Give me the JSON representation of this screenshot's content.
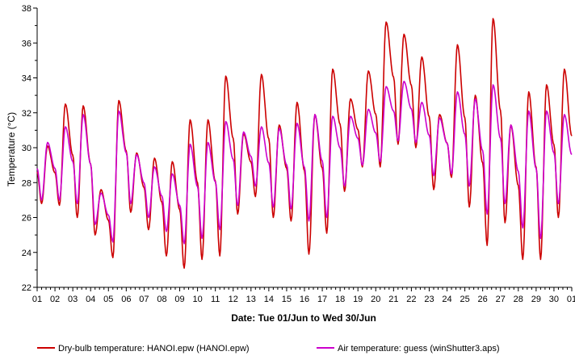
{
  "colors": {
    "drybulb": "#cc0000",
    "air": "#cc00cc"
  },
  "chart_data": {
    "type": "line",
    "title": "",
    "ylabel": "Temperature (°C)",
    "xlabel": "Date: Tue 01/Jun to Wed 30/Jun",
    "ylim": [
      22,
      38
    ],
    "yticks": [
      22,
      24,
      26,
      28,
      30,
      32,
      34,
      36,
      38
    ],
    "xlim": [
      0,
      30
    ],
    "xtick_labels": [
      "01",
      "02",
      "03",
      "04",
      "05",
      "06",
      "07",
      "08",
      "09",
      "10",
      "11",
      "12",
      "13",
      "14",
      "15",
      "16",
      "17",
      "18",
      "19",
      "20",
      "21",
      "22",
      "23",
      "24",
      "25",
      "26",
      "27",
      "28",
      "29",
      "30",
      "01"
    ],
    "grid": false,
    "legend_position": "bottom",
    "series": [
      {
        "name": "Dry-bulb temperature: HANOI.epw (HANOI.epw)",
        "color": "#cc0000",
        "mins": [
          26.8,
          26.7,
          26.0,
          25.0,
          23.7,
          26.3,
          25.3,
          23.8,
          23.1,
          23.6,
          23.8,
          26.2,
          27.2,
          26.0,
          25.8,
          23.9,
          25.1,
          27.5,
          28.9,
          28.9,
          30.2,
          30.0,
          27.6,
          28.3,
          26.6,
          24.4,
          25.7,
          23.6,
          23.6,
          26.0
        ],
        "maxs": [
          30.1,
          32.5,
          32.4,
          27.6,
          32.7,
          29.7,
          29.4,
          29.2,
          31.6,
          31.6,
          34.1,
          30.8,
          34.2,
          31.3,
          32.6,
          31.9,
          34.5,
          32.8,
          34.4,
          37.2,
          36.5,
          35.2,
          31.9,
          35.9,
          33.0,
          37.4,
          31.3,
          33.2,
          33.6,
          34.5
        ]
      },
      {
        "name": "Air temperature: guess (winShutter3.aps)",
        "color": "#cc00cc",
        "mins": [
          27.0,
          27.0,
          26.8,
          25.6,
          24.6,
          26.8,
          26.0,
          25.2,
          24.5,
          24.8,
          25.3,
          26.7,
          27.8,
          26.6,
          26.5,
          25.8,
          26.0,
          27.8,
          29.0,
          29.2,
          30.4,
          30.3,
          28.4,
          28.5,
          27.8,
          26.2,
          26.8,
          25.4,
          24.8,
          26.8
        ],
        "maxs": [
          30.3,
          31.2,
          31.9,
          27.4,
          32.1,
          29.6,
          28.9,
          28.5,
          30.2,
          30.3,
          31.5,
          30.9,
          31.2,
          31.1,
          31.4,
          31.9,
          31.8,
          31.8,
          32.2,
          33.5,
          33.8,
          32.6,
          31.7,
          33.2,
          32.8,
          33.6,
          31.3,
          32.1,
          32.1,
          31.9
        ]
      }
    ]
  },
  "legend": {
    "drybulb_label": "Dry-bulb temperature: HANOI.epw (HANOI.epw)",
    "air_label": "Air temperature: guess (winShutter3.aps)"
  }
}
